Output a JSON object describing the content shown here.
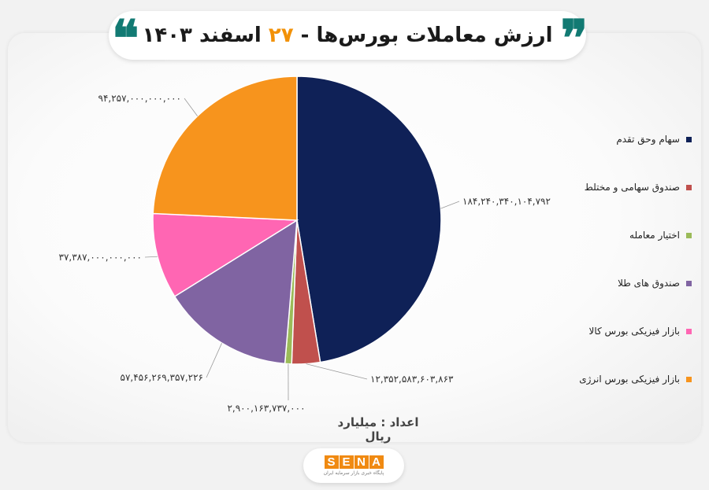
{
  "header": {
    "title_main": "ارزش معاملات بورس‌ها - ",
    "title_day": "۲۷",
    "title_date": " اسفند ۱۴۰۳",
    "quote_open": "❞",
    "quote_close": "❝"
  },
  "unit_note": "اعداد : میلیارد ریال",
  "footer": {
    "logo_letters": [
      "S",
      "E",
      "N",
      "A"
    ],
    "logo_sub": "پایگاه خبری بازار سرمایه ایران"
  },
  "colors": {
    "accent_orange": "#f29107",
    "accent_teal": "#127a73"
  },
  "chart_data": {
    "type": "pie",
    "title": "ارزش معاملات بورس‌ها - ۲۷ اسفند ۱۴۰۳",
    "legend_position": "right",
    "slices": [
      {
        "name": "سهام وحق تقدم",
        "value": 184240340104792,
        "label": "۱۸۴,۲۴۰,۳۴۰,۱۰۴,۷۹۲",
        "color": "#0f2157"
      },
      {
        "name": "صندوق سهامی و مختلط",
        "value": 12352583603863,
        "label": "۱۲,۳۵۲,۵۸۳,۶۰۳,۸۶۳",
        "color": "#c0504d"
      },
      {
        "name": "اختیار معامله",
        "value": 2900163737000,
        "label": "۲,۹۰۰,۱۶۳,۷۳۷,۰۰۰",
        "color": "#9bbb59"
      },
      {
        "name": "صندوق های طلا",
        "value": 57456269357226,
        "label": "۵۷,۴۵۶,۲۶۹,۳۵۷,۲۲۶",
        "color": "#8064a2"
      },
      {
        "name": "بازار فیزیکی بورس کالا",
        "value": 37387000000000,
        "label": "۳۷,۳۸۷,۰۰۰,۰۰۰,۰۰۰",
        "color": "#ff66b3"
      },
      {
        "name": "بازار فیزیکی بورس انرژی",
        "value": 94257000000000,
        "label": "۹۴,۲۵۷,۰۰۰,۰۰۰,۰۰۰",
        "color": "#f7941d"
      }
    ]
  }
}
